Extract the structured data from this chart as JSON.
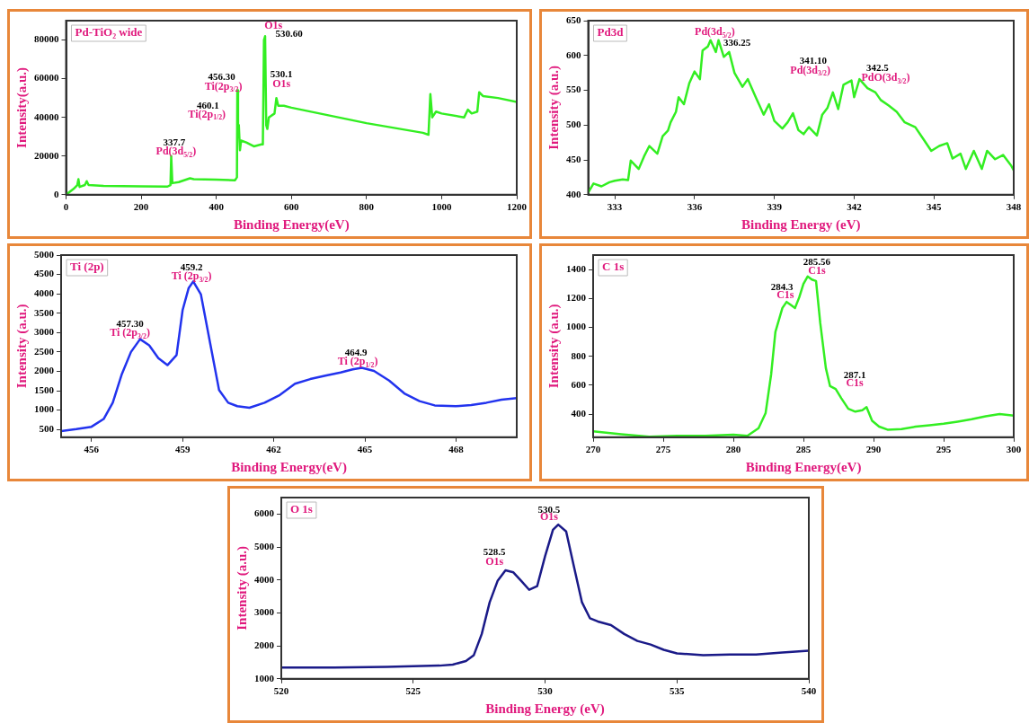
{
  "chart_data": [
    {
      "type": "line",
      "title": "Pd-TiO₂ wide",
      "xlabel": "Binding Energy(eV)",
      "ylabel": "Intensity(a.u.)",
      "color": "#33ee22",
      "grid": false,
      "legend": false,
      "xlim": [
        0,
        1200
      ],
      "xticks": [
        0,
        200,
        400,
        600,
        800,
        1000,
        1200
      ],
      "ylim": [
        0,
        90000
      ],
      "yticks": [
        0,
        20000,
        40000,
        60000,
        80000
      ],
      "x": [
        0,
        20,
        30,
        33,
        36,
        50,
        55,
        60,
        100,
        200,
        270,
        278,
        280,
        283,
        300,
        330,
        340,
        400,
        450,
        455,
        456,
        458,
        460,
        463,
        466,
        480,
        500,
        520,
        524,
        527,
        530,
        533,
        536,
        540,
        555,
        560,
        565,
        580,
        600,
        800,
        950,
        965,
        970,
        975,
        985,
        1000,
        1060,
        1070,
        1080,
        1095,
        1100,
        1110,
        1150,
        1200
      ],
      "values": [
        0,
        3000,
        5000,
        8000,
        4000,
        5000,
        7000,
        5000,
        4500,
        4300,
        4200,
        5000,
        20000,
        6000,
        6500,
        8500,
        8000,
        7800,
        7500,
        9000,
        54000,
        30000,
        36000,
        23000,
        28000,
        27000,
        25000,
        26000,
        26000,
        80000,
        82000,
        36000,
        34000,
        40000,
        42000,
        50000,
        46000,
        46000,
        45000,
        37000,
        32000,
        31000,
        52000,
        40000,
        43000,
        42000,
        40000,
        44000,
        42000,
        43000,
        53000,
        51000,
        50000,
        48000
      ],
      "annotations": [
        "O1s",
        "530.60",
        "530.1",
        "O1s",
        "456.30",
        "Ti(2p$_{3/2}$)",
        "460.1",
        "Ti(2p$_{1/2}$)",
        "337.7",
        "Pd(3d$_{5/2}$)"
      ]
    },
    {
      "type": "line",
      "title": "Pd3d",
      "xlabel": "Binding Energy (eV)",
      "ylabel": "Intensity (a.u.)",
      "color": "#33ee22",
      "grid": false,
      "legend": false,
      "xlim": [
        332,
        348
      ],
      "xticks": [
        333,
        336,
        339,
        342,
        345,
        348
      ],
      "ylim": [
        400,
        650
      ],
      "yticks": [
        400,
        450,
        500,
        550,
        600,
        650
      ],
      "x": [
        332.0,
        332.2,
        332.5,
        332.8,
        333.0,
        333.3,
        333.5,
        333.6,
        333.9,
        334.1,
        334.3,
        334.6,
        334.8,
        335.0,
        335.1,
        335.3,
        335.4,
        335.6,
        335.8,
        336.0,
        336.2,
        336.3,
        336.5,
        336.6,
        336.8,
        336.9,
        337.1,
        337.3,
        337.5,
        337.8,
        338.0,
        338.3,
        338.6,
        338.8,
        339.0,
        339.3,
        339.5,
        339.7,
        339.9,
        340.1,
        340.3,
        340.6,
        340.8,
        341.0,
        341.2,
        341.4,
        341.6,
        341.9,
        342.0,
        342.2,
        342.5,
        342.8,
        343.0,
        343.3,
        343.6,
        343.9,
        344.3,
        344.6,
        344.9,
        345.2,
        345.5,
        345.7,
        346.0,
        346.2,
        346.5,
        346.8,
        347.0,
        347.3,
        347.6,
        347.9,
        348.0
      ],
      "values": [
        403,
        416,
        412,
        418,
        420,
        422,
        421,
        449,
        437,
        455,
        470,
        459,
        484,
        492,
        504,
        519,
        540,
        530,
        560,
        577,
        566,
        607,
        613,
        622,
        605,
        622,
        598,
        605,
        575,
        555,
        566,
        540,
        515,
        530,
        506,
        495,
        504,
        517,
        493,
        487,
        497,
        485,
        515,
        525,
        547,
        523,
        558,
        564,
        540,
        566,
        553,
        547,
        536,
        528,
        519,
        504,
        497,
        480,
        463,
        470,
        474,
        452,
        459,
        437,
        463,
        437,
        463,
        451,
        457,
        442,
        435
      ],
      "annotations": [
        "Pd(3d$_{5/2}$)",
        "336.25",
        "341.10",
        "Pd(3d$_{3/2}$)",
        "342.5",
        "PdO(3d$_{3/2}$)"
      ]
    },
    {
      "type": "line",
      "title": "Ti (2p)",
      "xlabel": "Binding Energy(eV)",
      "ylabel": "Intensity (a.u.)",
      "color": "#2233ee",
      "grid": false,
      "legend": false,
      "xlim": [
        455,
        470
      ],
      "xticks": [
        456,
        459,
        462,
        465,
        468
      ],
      "ylim": [
        300,
        5000
      ],
      "yticks": [
        500,
        1000,
        1500,
        2000,
        2500,
        3000,
        3500,
        4000,
        4500,
        5000
      ],
      "x": [
        455,
        455.5,
        456,
        456.4,
        456.7,
        457.0,
        457.3,
        457.6,
        457.9,
        458.2,
        458.5,
        458.8,
        459.0,
        459.2,
        459.35,
        459.6,
        459.9,
        460.2,
        460.5,
        460.8,
        461.2,
        461.7,
        462.2,
        462.7,
        463.2,
        463.7,
        464.2,
        464.6,
        464.9,
        465.3,
        465.8,
        466.3,
        466.8,
        467.3,
        468.0,
        468.5,
        469.0,
        469.5,
        470
      ],
      "values": [
        460,
        510,
        570,
        770,
        1190,
        1930,
        2500,
        2830,
        2670,
        2340,
        2160,
        2420,
        3580,
        4150,
        4320,
        3990,
        2750,
        1520,
        1190,
        1100,
        1060,
        1190,
        1390,
        1680,
        1800,
        1890,
        1970,
        2050,
        2090,
        2010,
        1760,
        1430,
        1230,
        1120,
        1100,
        1130,
        1190,
        1270,
        1310
      ],
      "annotations": [
        "459.2",
        "Ti (2p$_{3/2}$)",
        "457.30",
        "Ti (2p$_{3/2}$)",
        "464.9",
        "Ti (2p$_{1/2}$)"
      ]
    },
    {
      "type": "line",
      "title": "C 1s",
      "xlabel": "Binding Energy(eV)",
      "ylabel": "Intensity (a.u.)",
      "color": "#33ee22",
      "grid": false,
      "legend": false,
      "xlim": [
        270,
        300
      ],
      "xticks": [
        270,
        275,
        280,
        285,
        290,
        295,
        300
      ],
      "ylim": [
        240,
        1500
      ],
      "yticks": [
        400,
        600,
        800,
        1000,
        1200,
        1400
      ],
      "x": [
        270,
        272,
        274,
        276,
        278,
        280,
        281,
        281.8,
        282.3,
        282.7,
        283.0,
        283.5,
        283.8,
        284.1,
        284.4,
        284.7,
        285.0,
        285.3,
        285.6,
        285.9,
        286.2,
        286.6,
        286.9,
        287.3,
        287.7,
        288.2,
        288.7,
        289.2,
        289.5,
        289.9,
        290.4,
        291,
        292,
        293,
        294,
        295,
        296,
        297,
        298,
        299,
        300
      ],
      "values": [
        281,
        261,
        244,
        250,
        250,
        257,
        250,
        302,
        406,
        677,
        968,
        1134,
        1176,
        1155,
        1134,
        1207,
        1300,
        1352,
        1331,
        1321,
        1030,
        718,
        593,
        573,
        510,
        437,
        417,
        427,
        448,
        354,
        313,
        292,
        296,
        313,
        323,
        333,
        348,
        365,
        385,
        400,
        390
      ],
      "annotations": [
        "285.56",
        "C1s",
        "284.3",
        "C1s",
        "287.1",
        "C1s"
      ]
    },
    {
      "type": "line",
      "title": "O 1s",
      "xlabel": "Binding Energy (eV)",
      "ylabel": "Intensity (a.u.)",
      "color": "#1a1a88",
      "grid": false,
      "legend": false,
      "xlim": [
        520,
        540
      ],
      "xticks": [
        520,
        525,
        530,
        535,
        540
      ],
      "ylim": [
        1000,
        6500
      ],
      "yticks": [
        1000,
        2000,
        3000,
        4000,
        5000,
        6000
      ],
      "x": [
        520,
        522,
        524,
        526,
        526.5,
        527,
        527.3,
        527.6,
        527.9,
        528.2,
        528.5,
        528.8,
        529.1,
        529.4,
        529.7,
        530.0,
        530.3,
        530.5,
        530.8,
        531.1,
        531.4,
        531.7,
        532.0,
        532.5,
        533.0,
        533.5,
        534.0,
        534.5,
        535.0,
        536,
        537,
        538,
        539,
        540
      ],
      "values": [
        1340,
        1340,
        1360,
        1400,
        1430,
        1540,
        1720,
        2360,
        3320,
        3970,
        4290,
        4230,
        3970,
        3700,
        3810,
        4720,
        5520,
        5680,
        5470,
        4390,
        3320,
        2840,
        2740,
        2630,
        2360,
        2150,
        2040,
        1880,
        1770,
        1720,
        1740,
        1740,
        1800,
        1850
      ],
      "annotations": [
        "530.5",
        "O1s",
        "528.5",
        "O1s"
      ]
    }
  ]
}
